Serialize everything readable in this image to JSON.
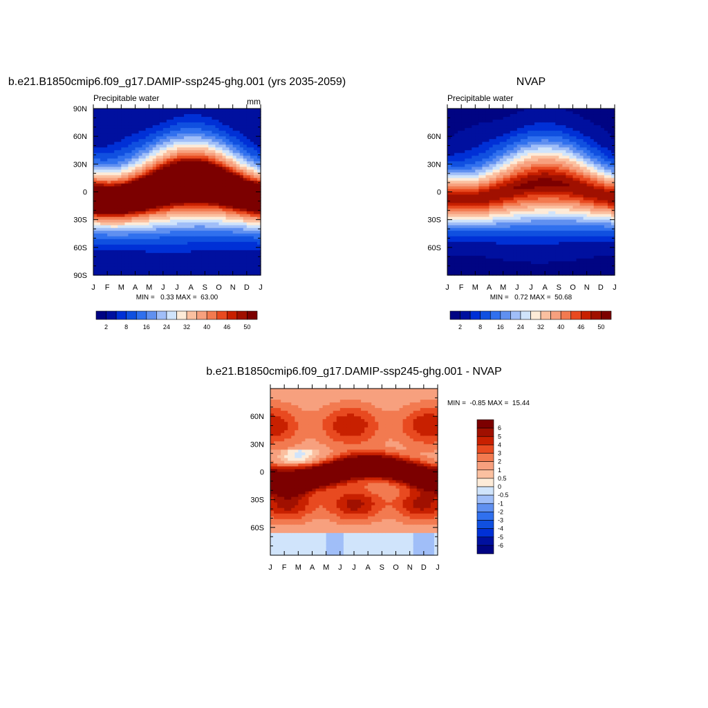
{
  "panels": {
    "model": {
      "title": "b.e21.B1850cmip6.f09_g17.DAMIP-ssp245-ghg.001 (yrs 2035-2059)",
      "subtitle_left": "Precipitable water",
      "subtitle_right": "mm",
      "minmax": "MIN =   0.33 MAX =  63.00"
    },
    "obs": {
      "title": "NVAP",
      "subtitle_left": "Precipitable water",
      "minmax": "MIN =   0.72 MAX =  50.68"
    },
    "diff": {
      "title": "b.e21.B1850cmip6.f09_g17.DAMIP-ssp245-ghg.001 - NVAP",
      "minmax": "MIN =  -0.85 MAX =  15.44"
    }
  },
  "chart_data": [
    {
      "type": "heatmap",
      "panel": "model",
      "title": "b.e21.B1850cmip6.f09_g17.DAMIP-ssp245-ghg.001 (yrs 2035-2059)",
      "x_tick_labels": [
        "J",
        "F",
        "M",
        "A",
        "M",
        "J",
        "J",
        "A",
        "S",
        "O",
        "N",
        "D",
        "J"
      ],
      "y_tick_labels": [
        "90N",
        "60N",
        "30N",
        "0",
        "30S",
        "60S",
        "90S"
      ],
      "ylim": [
        -90,
        90
      ],
      "colorbar_levels": [
        2,
        5,
        8,
        12,
        16,
        20,
        24,
        28,
        32,
        36,
        40,
        43,
        46,
        48,
        50
      ],
      "colorbar_labels": [
        "2",
        "8",
        "16",
        "24",
        "32",
        "40",
        "46",
        "50"
      ],
      "min": 0.33,
      "max": 63.0
    },
    {
      "type": "heatmap",
      "panel": "obs",
      "title": "NVAP",
      "x_tick_labels": [
        "J",
        "F",
        "M",
        "A",
        "M",
        "J",
        "J",
        "A",
        "S",
        "O",
        "N",
        "D",
        "J"
      ],
      "y_tick_labels": [
        "60N",
        "30N",
        "0",
        "30S",
        "60S"
      ],
      "ylim": [
        -90,
        90
      ],
      "colorbar_levels": [
        2,
        5,
        8,
        12,
        16,
        20,
        24,
        28,
        32,
        36,
        40,
        43,
        46,
        48,
        50
      ],
      "colorbar_labels": [
        "2",
        "8",
        "16",
        "24",
        "32",
        "40",
        "46",
        "50"
      ],
      "min": 0.72,
      "max": 50.68
    },
    {
      "type": "heatmap",
      "panel": "diff",
      "title": "b.e21.B1850cmip6.f09_g17.DAMIP-ssp245-ghg.001 - NVAP",
      "x_tick_labels": [
        "J",
        "F",
        "M",
        "A",
        "M",
        "J",
        "J",
        "A",
        "S",
        "O",
        "N",
        "D",
        "J"
      ],
      "y_tick_labels": [
        "60N",
        "30N",
        "0",
        "30S",
        "60S"
      ],
      "ylim": [
        -90,
        90
      ],
      "colorbar_labels": [
        "6",
        "5",
        "4",
        "3",
        "2",
        "1",
        "0.5",
        "0",
        "-0.5",
        "-1",
        "-2",
        "-3",
        "-4",
        "-5",
        "-6"
      ],
      "min": -0.85,
      "max": 15.44
    }
  ],
  "colors": {
    "seq": [
      "#000483",
      "#00109f",
      "#0030d6",
      "#1050e0",
      "#3070ee",
      "#6090f0",
      "#a0bef8",
      "#d0e4fb",
      "#fdebd8",
      "#fbc0a0",
      "#f7a07e",
      "#f27a50",
      "#e84a20",
      "#c82000",
      "#a01000",
      "#7c0000"
    ],
    "diff": [
      "#7c0000",
      "#a01000",
      "#c82000",
      "#e84a20",
      "#f27a50",
      "#f7a07e",
      "#fbc0a0",
      "#fdebd8",
      "#d0e4fb",
      "#a0bef8",
      "#6090f0",
      "#3070ee",
      "#1050e0",
      "#0030d6",
      "#00109f",
      "#000483"
    ]
  }
}
